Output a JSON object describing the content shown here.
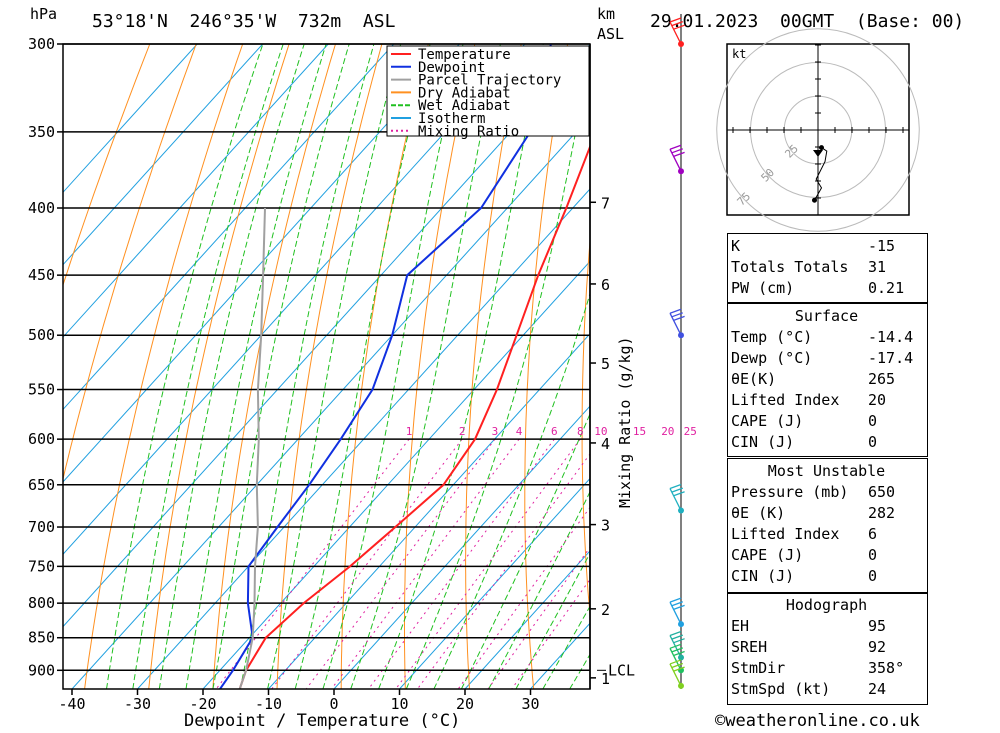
{
  "header": {
    "hpa_label": "hPa",
    "location": "53°18'N  246°35'W  732m  ASL",
    "km_label": "km",
    "asl_label": "ASL",
    "datetime": "29.01.2023  00GMT  (Base: 00)"
  },
  "footer": {
    "copyright": "©weatheronline.co.uk"
  },
  "chart_data": {
    "type": "line",
    "title": "",
    "xlabel": "Dewpoint / Temperature (°C)",
    "ylabel": "hPa",
    "x_ticks": [
      -40,
      -30,
      -20,
      -10,
      0,
      10,
      20,
      30
    ],
    "pressure_levels": [
      300,
      350,
      400,
      450,
      500,
      550,
      600,
      650,
      700,
      750,
      800,
      850,
      900
    ],
    "km_ticks": [
      {
        "label": "7",
        "p": 396
      },
      {
        "label": "6",
        "p": 457
      },
      {
        "label": "5",
        "p": 525
      },
      {
        "label": "4",
        "p": 604
      },
      {
        "label": "3",
        "p": 697
      },
      {
        "label": "2",
        "p": 808
      },
      {
        "label": "1",
        "p": 912
      }
    ],
    "lcl_label": "LCL",
    "lcl_pressure": 900,
    "mixing_ratio_axis_label": "Mixing Ratio (g/kg)",
    "mixing_ratio_labels": [
      "1",
      "2",
      "3",
      "4",
      "6",
      "8",
      "10",
      "15",
      "20",
      "25"
    ],
    "legend": [
      "Temperature",
      "Dewpoint",
      "Parcel Trajectory",
      "Dry Adiabat",
      "Wet Adiabat",
      "Isotherm",
      "Mixing Ratio"
    ],
    "legend_position": "top-right",
    "colors": {
      "temperature": "#ff2020",
      "dewpoint": "#1030e0",
      "parcel": "#a0a0a0",
      "dry_adiabat": "#ff9020",
      "wet_adiabat": "#20c020",
      "isotherm": "#20a0e0",
      "mixing_ratio": "#e020a0"
    },
    "series": [
      {
        "name": "Temperature",
        "points": [
          [
            930,
            -14.4
          ],
          [
            900,
            -16
          ],
          [
            850,
            -17.5
          ],
          [
            800,
            -16.5
          ],
          [
            750,
            -14.5
          ],
          [
            700,
            -13
          ],
          [
            650,
            -11.5
          ],
          [
            600,
            -13
          ],
          [
            550,
            -16.5
          ],
          [
            500,
            -21
          ],
          [
            450,
            -26
          ],
          [
            400,
            -31
          ],
          [
            350,
            -37
          ],
          [
            300,
            -44
          ]
        ]
      },
      {
        "name": "Dewpoint",
        "points": [
          [
            930,
            -17.4
          ],
          [
            900,
            -18
          ],
          [
            850,
            -19.5
          ],
          [
            800,
            -25
          ],
          [
            750,
            -30
          ],
          [
            700,
            -31
          ],
          [
            650,
            -32
          ],
          [
            600,
            -33.5
          ],
          [
            550,
            -35.5
          ],
          [
            500,
            -40
          ],
          [
            450,
            -46
          ],
          [
            400,
            -44
          ],
          [
            350,
            -47
          ],
          [
            300,
            -56
          ]
        ]
      },
      {
        "name": "Parcel Trajectory",
        "points": [
          [
            930,
            -14.4
          ],
          [
            900,
            -16
          ],
          [
            850,
            -19.5
          ],
          [
            800,
            -24
          ],
          [
            750,
            -29
          ],
          [
            700,
            -34
          ],
          [
            650,
            -40
          ],
          [
            600,
            -46
          ],
          [
            550,
            -53
          ],
          [
            500,
            -60
          ],
          [
            450,
            -68
          ],
          [
            400,
            -77
          ]
        ]
      }
    ],
    "wind_barbs": [
      {
        "p": 300,
        "color": "#ff2020"
      },
      {
        "p": 375,
        "color": "#a000c0"
      },
      {
        "p": 500,
        "color": "#4050e0"
      },
      {
        "p": 680,
        "color": "#20b0c0"
      },
      {
        "p": 830,
        "color": "#20a0e0"
      },
      {
        "p": 880,
        "color": "#20b0a0"
      },
      {
        "p": 900,
        "color": "#20c060"
      },
      {
        "p": 925,
        "color": "#80d020"
      }
    ],
    "hodograph": {
      "unit_label": "kt",
      "ring_labels": [
        "25",
        "50",
        "75"
      ],
      "points": [
        [
          2,
          -10
        ],
        [
          5,
          -12
        ],
        [
          4,
          -18
        ],
        [
          -1,
          -28
        ],
        [
          2,
          -33
        ],
        [
          -2,
          -40
        ]
      ]
    }
  },
  "indices": {
    "basic": [
      {
        "label": "K",
        "value": "-15"
      },
      {
        "label": "Totals Totals",
        "value": "31"
      },
      {
        "label": "PW (cm)",
        "value": "0.21"
      }
    ],
    "surface": {
      "title": "Surface",
      "rows": [
        {
          "label": "Temp (°C)",
          "value": "-14.4"
        },
        {
          "label": "Dewp (°C)",
          "value": "-17.4"
        },
        {
          "label": "θE(K)",
          "value": "265"
        },
        {
          "label": "Lifted Index",
          "value": "20"
        },
        {
          "label": "CAPE (J)",
          "value": "0"
        },
        {
          "label": "CIN (J)",
          "value": "0"
        }
      ]
    },
    "most_unstable": {
      "title": "Most Unstable",
      "rows": [
        {
          "label": "Pressure (mb)",
          "value": "650"
        },
        {
          "label": "θE (K)",
          "value": "282"
        },
        {
          "label": "Lifted Index",
          "value": "6"
        },
        {
          "label": "CAPE (J)",
          "value": "0"
        },
        {
          "label": "CIN (J)",
          "value": "0"
        }
      ]
    },
    "hodograph": {
      "title": "Hodograph",
      "rows": [
        {
          "label": "EH",
          "value": "95"
        },
        {
          "label": "SREH",
          "value": "92"
        },
        {
          "label": "StmDir",
          "value": "358°"
        },
        {
          "label": "StmSpd (kt)",
          "value": "24"
        }
      ]
    }
  }
}
